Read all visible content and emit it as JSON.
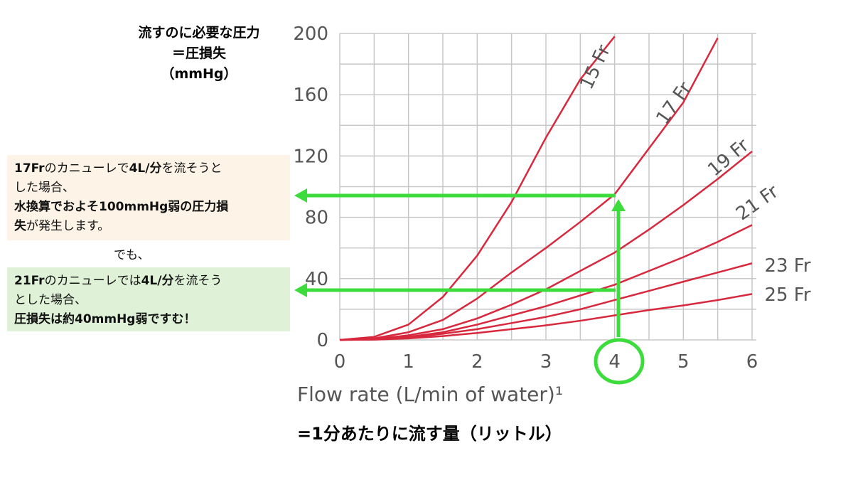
{
  "chart_data": {
    "type": "line",
    "y_label_lines": [
      "流すのに必要な圧力",
      "＝圧損失",
      "（mmHg）"
    ],
    "x_label": "Flow rate (L/min of water)¹",
    "x_label_note": "=1分あたりに流す量（リットル）",
    "x": [
      0,
      0.5,
      1,
      1.5,
      2,
      2.5,
      3,
      3.5,
      4,
      4.5,
      5,
      5.5,
      6
    ],
    "series": [
      {
        "name": "15 Fr",
        "color": "#d8283e",
        "values": [
          0,
          2,
          10,
          28,
          55,
          90,
          132,
          170,
          198,
          null,
          null,
          null,
          null
        ]
      },
      {
        "name": "17 Fr",
        "color": "#d8283e",
        "values": [
          0,
          1,
          5,
          13,
          27,
          44,
          60,
          77,
          95,
          125,
          155,
          197,
          null
        ]
      },
      {
        "name": "19 Fr",
        "color": "#d8283e",
        "values": [
          0,
          0.5,
          3,
          7,
          14,
          23,
          33,
          45,
          57,
          72,
          88,
          105,
          123
        ]
      },
      {
        "name": "21 Fr",
        "color": "#d8283e",
        "values": [
          0,
          0.5,
          2,
          5,
          10,
          16,
          22,
          29,
          36,
          45,
          54,
          64,
          75
        ]
      },
      {
        "name": "23 Fr",
        "color": "#d8283e",
        "values": [
          0,
          0.3,
          1.5,
          4,
          7,
          11,
          15,
          20,
          26,
          32,
          38,
          44,
          50
        ]
      },
      {
        "name": "25 Fr",
        "color": "#d8283e",
        "values": [
          0,
          0.2,
          1,
          2.5,
          4.5,
          7,
          9.5,
          12.5,
          16,
          19.5,
          22.5,
          26,
          30
        ]
      }
    ],
    "xlim": [
      0,
      6
    ],
    "xticks": [
      0,
      1,
      2,
      3,
      4,
      5,
      6
    ],
    "ylim": [
      0,
      200
    ],
    "yticks": [
      0,
      40,
      80,
      120,
      160,
      200
    ],
    "grid": true
  },
  "annotations": [
    {
      "lines": [
        [
          {
            "text": "17Fr",
            "bold": true
          },
          {
            "text": "のカニューレで",
            "bold": false
          },
          {
            "text": "4L/分",
            "bold": true
          },
          {
            "text": "を流そうと",
            "bold": false
          }
        ],
        [
          {
            "text": "した場合、",
            "bold": false
          }
        ],
        [
          {
            "text": "水換算でおよそ100mmHg弱の圧力損",
            "bold": true
          }
        ],
        [
          {
            "text": "失",
            "bold": true
          },
          {
            "text": "が発生します。",
            "bold": false
          }
        ]
      ]
    },
    {
      "lines": [
        [
          {
            "text": "でも、",
            "bold": false
          }
        ]
      ]
    },
    {
      "lines": [
        [
          {
            "text": "21Fr",
            "bold": true
          },
          {
            "text": "のカニューレでは",
            "bold": false
          },
          {
            "text": "4L/分",
            "bold": true
          },
          {
            "text": "を流そう",
            "bold": false
          }
        ],
        [
          {
            "text": "とした場合、",
            "bold": false
          }
        ],
        [
          {
            "text": "圧損失は約40mmHg弱ですむ！",
            "bold": true
          }
        ]
      ]
    }
  ]
}
